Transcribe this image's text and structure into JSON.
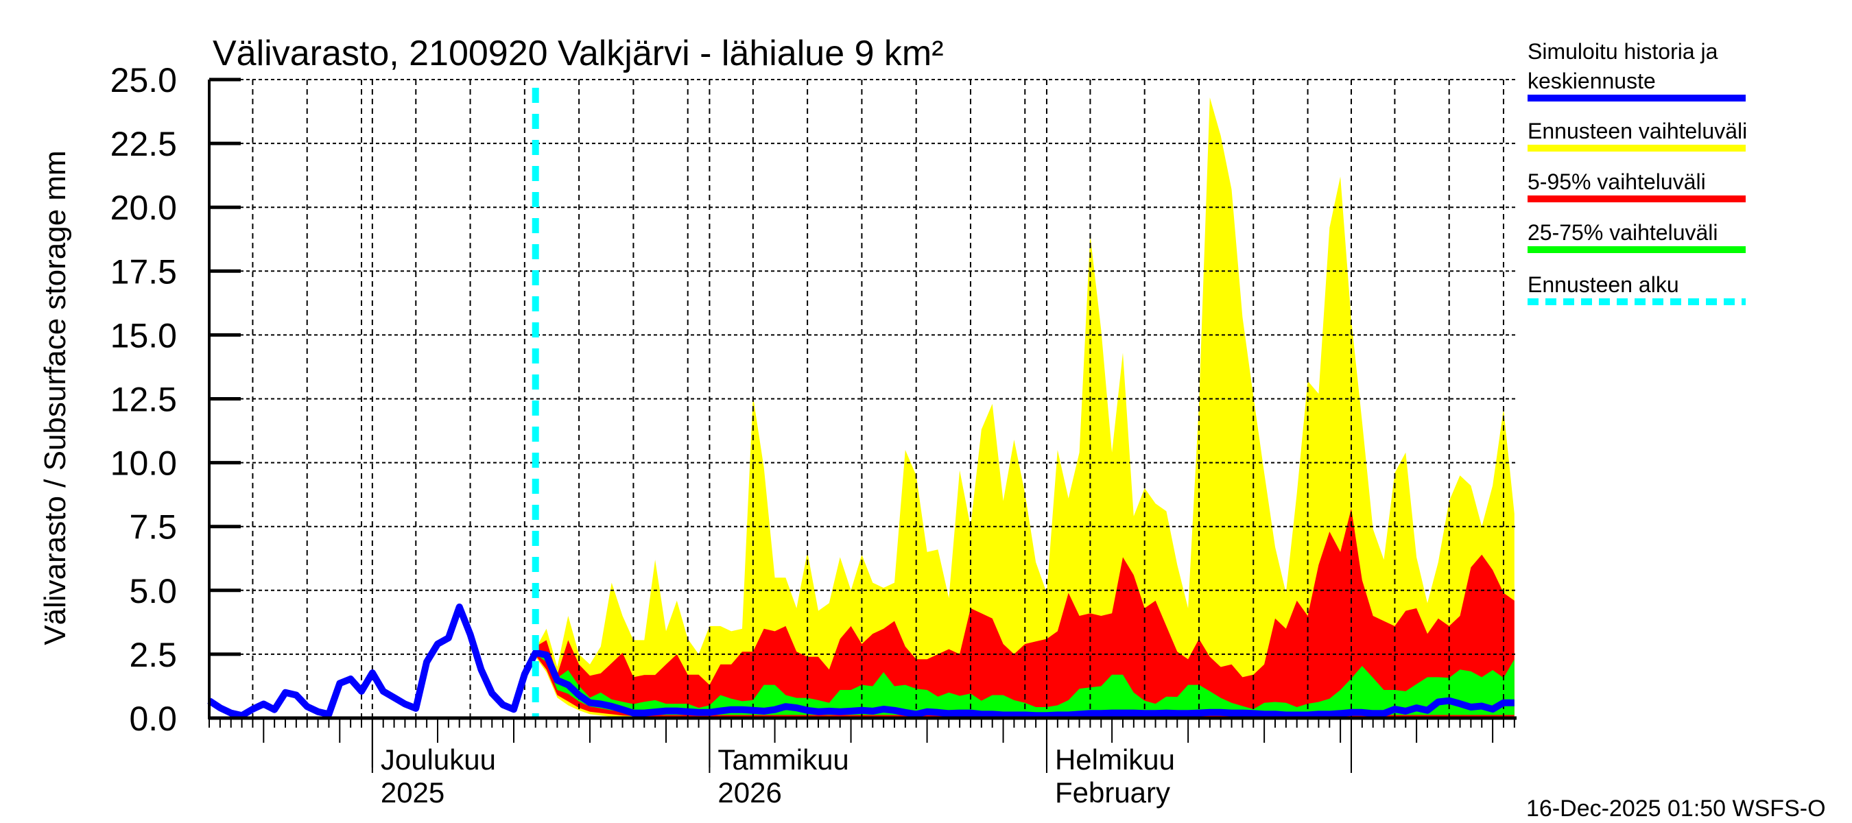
{
  "chart_data": {
    "type": "area",
    "title": "Välivarasto, 2100920 Valkjärvi - lähialue 9 km²",
    "ylabel": "Välivarasto / Subsurface storage  mm",
    "xlabel": "",
    "ylim": [
      0,
      25
    ],
    "y_ticks": [
      "0.0",
      "2.5",
      "5.0",
      "7.5",
      "10.0",
      "12.5",
      "15.0",
      "17.5",
      "20.0",
      "22.5",
      "25.0"
    ],
    "grid": true,
    "legend_position": "right",
    "month_labels": [
      {
        "date": "2025-12-01",
        "lines": [
          "Joulukuu",
          "2025"
        ]
      },
      {
        "date": "2026-01-01",
        "lines": [
          "Tammikuu",
          "2026"
        ]
      },
      {
        "date": "2026-02-01",
        "lines": [
          "Helmikuu",
          "February"
        ]
      },
      {
        "date": "2026-03-01",
        "lines": []
      }
    ],
    "forecast_start": {
      "date": "2025-12-16",
      "name": "Ennusteen alku",
      "color": "#00ffff"
    },
    "x": [
      "2025-11-16",
      "2025-11-17",
      "2025-11-18",
      "2025-11-19",
      "2025-11-20",
      "2025-11-21",
      "2025-11-22",
      "2025-11-23",
      "2025-11-24",
      "2025-11-25",
      "2025-11-26",
      "2025-11-27",
      "2025-11-28",
      "2025-11-29",
      "2025-11-30",
      "2025-12-01",
      "2025-12-02",
      "2025-12-03",
      "2025-12-04",
      "2025-12-05",
      "2025-12-06",
      "2025-12-07",
      "2025-12-08",
      "2025-12-09",
      "2025-12-10",
      "2025-12-11",
      "2025-12-12",
      "2025-12-13",
      "2025-12-14",
      "2025-12-15",
      "2025-12-16",
      "2025-12-17",
      "2025-12-18",
      "2025-12-19",
      "2025-12-20",
      "2025-12-21",
      "2025-12-22",
      "2025-12-23",
      "2025-12-24",
      "2025-12-25",
      "2025-12-26",
      "2025-12-27",
      "2025-12-28",
      "2025-12-29",
      "2025-12-30",
      "2025-12-31",
      "2026-01-01",
      "2026-01-02",
      "2026-01-03",
      "2026-01-04",
      "2026-01-05",
      "2026-01-06",
      "2026-01-07",
      "2026-01-08",
      "2026-01-09",
      "2026-01-10",
      "2026-01-11",
      "2026-01-12",
      "2026-01-13",
      "2026-01-14",
      "2026-01-15",
      "2026-01-16",
      "2026-01-17",
      "2026-01-18",
      "2026-01-19",
      "2026-01-20",
      "2026-01-21",
      "2026-01-22",
      "2026-01-23",
      "2026-01-24",
      "2026-01-25",
      "2026-01-26",
      "2026-01-27",
      "2026-01-28",
      "2026-01-29",
      "2026-01-30",
      "2026-01-31",
      "2026-02-01",
      "2026-02-02",
      "2026-02-03",
      "2026-02-04",
      "2026-02-05",
      "2026-02-06",
      "2026-02-07",
      "2026-02-08",
      "2026-02-09",
      "2026-02-10",
      "2026-02-11",
      "2026-02-12",
      "2026-02-13",
      "2026-02-14",
      "2026-02-15",
      "2026-02-16",
      "2026-02-17",
      "2026-02-18",
      "2026-02-19",
      "2026-02-20",
      "2026-02-21",
      "2026-02-22",
      "2026-02-23",
      "2026-02-24",
      "2026-02-25",
      "2026-02-26",
      "2026-02-27",
      "2026-02-28",
      "2026-03-01",
      "2026-03-02",
      "2026-03-03",
      "2026-03-04",
      "2026-03-05",
      "2026-03-06",
      "2026-03-07",
      "2026-03-08",
      "2026-03-09",
      "2026-03-10",
      "2026-03-11",
      "2026-03-12",
      "2026-03-13",
      "2026-03-14",
      "2026-03-15",
      "2026-03-16"
    ],
    "bands": [
      {
        "name": "Ennusteen vaihteluväli",
        "color": "#ffff00",
        "upper": [
          null,
          null,
          null,
          null,
          null,
          null,
          null,
          null,
          null,
          null,
          null,
          null,
          null,
          null,
          null,
          null,
          null,
          null,
          null,
          null,
          null,
          null,
          null,
          null,
          null,
          null,
          null,
          null,
          null,
          null,
          2.7,
          3.5,
          2.0,
          4.0,
          2.5,
          2.1,
          2.8,
          5.3,
          4.0,
          3.05,
          3.05,
          6.2,
          3.4,
          4.6,
          3.1,
          2.5,
          3.6,
          3.6,
          3.4,
          3.5,
          12.6,
          9.8,
          5.5,
          5.5,
          4.3,
          6.5,
          4.2,
          4.5,
          6.3,
          5.0,
          6.4,
          5.3,
          5.1,
          5.3,
          10.5,
          9.5,
          6.5,
          6.6,
          4.7,
          9.7,
          7.5,
          11.3,
          12.3,
          8.5,
          10.9,
          8.8,
          6.1,
          4.9,
          10.5,
          8.6,
          10.4,
          18.9,
          15.2,
          10.4,
          14.3,
          7.9,
          9.0,
          8.4,
          8.1,
          6.0,
          4.3,
          12.3,
          24.3,
          22.8,
          20.7,
          15.7,
          12.6,
          9.6,
          6.7,
          4.9,
          8.8,
          13.2,
          12.7,
          19.2,
          21.2,
          15.6,
          11.6,
          7.4,
          6.2,
          9.6,
          10.4,
          6.3,
          4.5,
          6.1,
          8.5,
          9.5,
          9.1,
          7.5,
          9.1,
          12.1,
          8.0
        ],
        "lower": [
          null,
          null,
          null,
          null,
          null,
          null,
          null,
          null,
          null,
          null,
          null,
          null,
          null,
          null,
          null,
          null,
          null,
          null,
          null,
          null,
          null,
          null,
          null,
          null,
          null,
          null,
          null,
          null,
          null,
          null,
          2.4,
          1.8,
          0.8,
          0.5,
          0.3,
          0.15,
          0.1,
          0.05,
          0.02,
          0,
          0,
          0,
          0,
          0,
          0,
          0,
          0,
          0,
          0,
          0,
          0,
          0,
          0,
          0,
          0,
          0,
          0,
          0,
          0,
          0,
          0,
          0,
          0,
          0,
          0,
          0,
          0,
          0,
          0,
          0,
          0,
          0,
          0,
          0,
          0,
          0,
          0,
          0,
          0,
          0,
          0,
          0,
          0,
          0,
          0,
          0,
          0,
          0,
          0,
          0,
          0,
          0,
          0,
          0,
          0,
          0,
          0,
          0,
          0,
          0,
          0,
          0,
          0,
          0,
          0,
          0,
          0,
          0,
          0,
          0,
          0,
          0,
          0,
          0,
          0,
          0,
          0,
          0,
          0,
          0,
          0
        ]
      },
      {
        "name": "5-95% vaihteluväli",
        "color": "#ff0000",
        "upper": [
          null,
          null,
          null,
          null,
          null,
          null,
          null,
          null,
          null,
          null,
          null,
          null,
          null,
          null,
          null,
          null,
          null,
          null,
          null,
          null,
          null,
          null,
          null,
          null,
          null,
          null,
          null,
          null,
          null,
          null,
          2.8,
          3.05,
          1.7,
          3.05,
          2.1,
          1.66,
          1.75,
          2.15,
          2.56,
          1.6,
          1.69,
          1.69,
          2.1,
          2.5,
          1.7,
          1.7,
          1.3,
          2.1,
          2.1,
          2.6,
          2.6,
          3.5,
          3.4,
          3.6,
          2.6,
          2.4,
          2.4,
          1.9,
          3.1,
          3.6,
          2.9,
          3.3,
          3.5,
          3.8,
          2.8,
          2.3,
          2.3,
          2.5,
          2.7,
          2.5,
          4.3,
          4.1,
          3.9,
          2.9,
          2.5,
          2.9,
          3.0,
          3.1,
          3.4,
          4.9,
          4.0,
          4.1,
          4.0,
          4.1,
          6.3,
          5.6,
          4.3,
          4.6,
          3.6,
          2.6,
          2.3,
          3.1,
          2.4,
          2.0,
          2.1,
          1.6,
          1.7,
          2.1,
          3.9,
          3.5,
          4.6,
          4.0,
          6.0,
          7.3,
          6.5,
          8.2,
          5.4,
          4.0,
          3.8,
          3.6,
          4.2,
          4.3,
          3.3,
          3.9,
          3.6,
          4.0,
          5.9,
          6.4,
          5.8,
          4.9,
          4.6
        ],
        "lower": [
          null,
          null,
          null,
          null,
          null,
          null,
          null,
          null,
          null,
          null,
          null,
          null,
          null,
          null,
          null,
          null,
          null,
          null,
          null,
          null,
          null,
          null,
          null,
          null,
          null,
          null,
          null,
          null,
          null,
          null,
          2.45,
          1.9,
          0.9,
          0.65,
          0.4,
          0.25,
          0.2,
          0.15,
          0.1,
          0.08,
          0.05,
          0.05,
          0.05,
          0.05,
          0.05,
          0.05,
          0.05,
          0.05,
          0.05,
          0.05,
          0.05,
          0.05,
          0.05,
          0.05,
          0.05,
          0.05,
          0.05,
          0.05,
          0.05,
          0.05,
          0.05,
          0.05,
          0.05,
          0.05,
          0.05,
          0.05,
          0.05,
          0.05,
          0.05,
          0.05,
          0.05,
          0.05,
          0.05,
          0.05,
          0.05,
          0.05,
          0.05,
          0.05,
          0.05,
          0.05,
          0.05,
          0.05,
          0.05,
          0.05,
          0.05,
          0.05,
          0.05,
          0.05,
          0.05,
          0.05,
          0.05,
          0.05,
          0.05,
          0.05,
          0.05,
          0.05,
          0.05,
          0.05,
          0.05,
          0.05,
          0.05,
          0.05,
          0.05,
          0.05,
          0.05,
          0.05,
          0.05,
          0.05,
          0.05,
          0.05,
          0.05,
          0.05,
          0.05,
          0.05,
          0.05,
          0.05,
          0.05,
          0.05,
          0.05,
          0.05,
          0.05
        ]
      },
      {
        "name": "25-75% vaihteluväli",
        "color": "#00ff00",
        "upper": [
          null,
          null,
          null,
          null,
          null,
          null,
          null,
          null,
          null,
          null,
          null,
          null,
          null,
          null,
          null,
          null,
          null,
          null,
          null,
          null,
          null,
          null,
          null,
          null,
          null,
          null,
          null,
          null,
          null,
          null,
          2.65,
          2.6,
          1.57,
          1.88,
          1.26,
          0.8,
          1.0,
          0.73,
          0.64,
          0.55,
          0.64,
          0.7,
          0.56,
          0.56,
          0.56,
          0.4,
          0.5,
          0.9,
          0.76,
          0.66,
          0.7,
          1.3,
          1.3,
          0.9,
          0.79,
          0.79,
          0.7,
          0.6,
          1.1,
          1.1,
          1.3,
          1.25,
          1.8,
          1.25,
          1.3,
          1.15,
          1.1,
          0.84,
          1.0,
          0.87,
          0.96,
          0.68,
          0.9,
          0.9,
          0.7,
          0.6,
          0.43,
          0.43,
          0.5,
          0.7,
          1.15,
          1.2,
          1.25,
          1.7,
          1.7,
          1.0,
          0.68,
          0.56,
          0.84,
          0.83,
          1.3,
          1.3,
          1.05,
          0.79,
          0.6,
          0.47,
          0.35,
          0.6,
          0.63,
          0.6,
          0.43,
          0.56,
          0.63,
          0.76,
          1.1,
          1.55,
          2.04,
          1.58,
          1.1,
          1.1,
          1.05,
          1.33,
          1.6,
          1.6,
          1.58,
          1.9,
          1.83,
          1.6,
          1.88,
          1.58,
          2.3
        ],
        "lower": [
          null,
          null,
          null,
          null,
          null,
          null,
          null,
          null,
          null,
          null,
          null,
          null,
          null,
          null,
          null,
          null,
          null,
          null,
          null,
          null,
          null,
          null,
          null,
          null,
          null,
          null,
          null,
          null,
          null,
          null,
          2.5,
          2.2,
          1.1,
          0.95,
          0.65,
          0.45,
          0.38,
          0.3,
          0.25,
          0.15,
          0.12,
          0.12,
          0.12,
          0.12,
          0.12,
          0.12,
          0.12,
          0.12,
          0.12,
          0.12,
          0.12,
          0.12,
          0.12,
          0.12,
          0.12,
          0.12,
          0.12,
          0.12,
          0.12,
          0.12,
          0.12,
          0.12,
          0.12,
          0.12,
          0.12,
          0.12,
          0.12,
          0.12,
          0.12,
          0.12,
          0.12,
          0.12,
          0.12,
          0.12,
          0.12,
          0.12,
          0.12,
          0.12,
          0.12,
          0.12,
          0.12,
          0.12,
          0.12,
          0.12,
          0.12,
          0.12,
          0.12,
          0.12,
          0.12,
          0.12,
          0.12,
          0.12,
          0.12,
          0.12,
          0.12,
          0.12,
          0.12,
          0.12,
          0.12,
          0.12,
          0.12,
          0.12,
          0.12,
          0.12,
          0.12,
          0.12,
          0.12,
          0.12,
          0.12,
          0.12,
          0.12,
          0.12,
          0.12,
          0.12,
          0.12,
          0.12,
          0.12,
          0.12,
          0.12,
          0.12,
          0.12
        ]
      }
    ],
    "series": [
      {
        "name": "Simuloitu historia ja keskiennuste",
        "color": "#0000ff",
        "values": [
          0.68,
          0.4,
          0.2,
          0.1,
          0.35,
          0.55,
          0.33,
          1.0,
          0.9,
          0.45,
          0.25,
          0.15,
          1.36,
          1.53,
          1.05,
          1.77,
          1.05,
          0.8,
          0.55,
          0.38,
          2.2,
          2.9,
          3.14,
          4.35,
          3.27,
          1.9,
          0.97,
          0.52,
          0.34,
          1.72,
          2.56,
          2.47,
          1.48,
          1.3,
          0.9,
          0.6,
          0.55,
          0.46,
          0.33,
          0.2,
          0.2,
          0.24,
          0.28,
          0.28,
          0.25,
          0.22,
          0.22,
          0.28,
          0.33,
          0.33,
          0.3,
          0.27,
          0.33,
          0.45,
          0.4,
          0.3,
          0.25,
          0.27,
          0.25,
          0.27,
          0.3,
          0.27,
          0.35,
          0.3,
          0.22,
          0.15,
          0.25,
          0.22,
          0.18,
          0.2,
          0.2,
          0.15,
          0.15,
          0.12,
          0.12,
          0.12,
          0.1,
          0.1,
          0.12,
          0.12,
          0.15,
          0.18,
          0.18,
          0.2,
          0.2,
          0.2,
          0.18,
          0.18,
          0.2,
          0.18,
          0.18,
          0.2,
          0.22,
          0.22,
          0.2,
          0.2,
          0.18,
          0.15,
          0.15,
          0.12,
          0.12,
          0.12,
          0.15,
          0.15,
          0.18,
          0.22,
          0.22,
          0.18,
          0.18,
          0.35,
          0.27,
          0.4,
          0.3,
          0.63,
          0.68,
          0.56,
          0.43,
          0.47,
          0.35,
          0.6,
          0.6
        ]
      }
    ]
  },
  "legend": {
    "items": [
      {
        "lines": [
          "Simuloitu historia ja",
          "keskiennuste"
        ],
        "color": "#0000ff",
        "style": "solid"
      },
      {
        "lines": [
          "Ennusteen vaihteluväli"
        ],
        "color": "#ffff00",
        "style": "solid"
      },
      {
        "lines": [
          "5-95% vaihteluväli"
        ],
        "color": "#ff0000",
        "style": "solid"
      },
      {
        "lines": [
          "25-75% vaihteluväli"
        ],
        "color": "#00ff00",
        "style": "solid"
      },
      {
        "lines": [
          "Ennusteen alku"
        ],
        "color": "#00ffff",
        "style": "dashed"
      }
    ]
  },
  "footer": {
    "timestamp": "16-Dec-2025 01:50 WSFS-O"
  }
}
